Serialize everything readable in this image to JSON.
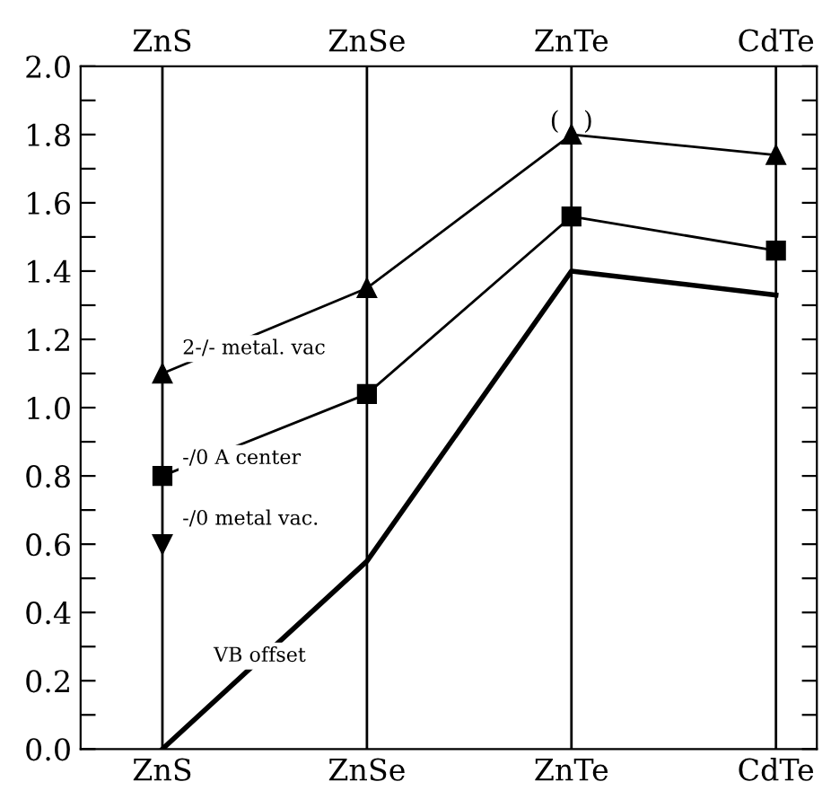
{
  "chart_data": {
    "type": "line",
    "categories": [
      "ZnS",
      "ZnSe",
      "ZnTe",
      "CdTe"
    ],
    "ylim": [
      0,
      2.0
    ],
    "yticks": [
      {
        "value": 0,
        "label": "0.0"
      },
      {
        "value": 0.1,
        "label": null
      },
      0.2,
      {
        "value": 0.3,
        "label": null
      },
      0.4,
      {
        "value": 0.5,
        "label": null
      },
      0.6,
      {
        "value": 0.7,
        "label": null
      },
      0.8,
      {
        "value": 0.9,
        "label": null
      },
      {
        "value": 1.0,
        "label": "1.0"
      },
      {
        "value": 1.1,
        "label": null
      },
      1.2,
      {
        "value": 1.3,
        "label": null
      },
      1.4,
      {
        "value": 1.5,
        "label": null
      },
      1.6,
      {
        "value": 1.7,
        "label": null
      },
      1.8,
      {
        "value": 1.9,
        "label": null
      },
      {
        "value": 2.0,
        "label": "2.0"
      }
    ],
    "grid": "x",
    "legend": false,
    "series": [
      {
        "name": "2-/- metal. vac",
        "color": "#000000",
        "marker": "triangle",
        "values": [
          1.1,
          1.35,
          1.8,
          1.74
        ]
      },
      {
        "name": "-/0 A center",
        "color": "#000000",
        "marker": "square",
        "values": [
          0.8,
          1.04,
          1.56,
          1.46
        ]
      },
      {
        "name": "-/0 metal vac.",
        "color": "#000000",
        "marker": "triangle_down",
        "values": [
          0.6,
          null,
          null,
          null
        ]
      },
      {
        "name": "VB offset",
        "color": "#000000",
        "marker": "none",
        "values": [
          0.0,
          0.55,
          1.4,
          1.33
        ]
      }
    ],
    "annotations": [
      {
        "text": "(   )",
        "x": "ZnTe",
        "y": 1.8
      }
    ]
  }
}
